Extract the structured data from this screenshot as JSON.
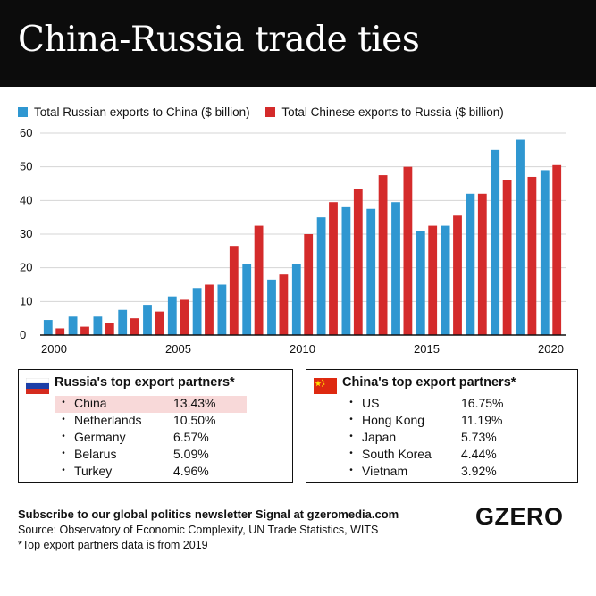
{
  "title": "China-Russia trade ties",
  "colors": {
    "russia": "#2f97d1",
    "china": "#d42b2b",
    "highlight": "#f8d9d9"
  },
  "chart_data": {
    "type": "bar",
    "x": [
      2000,
      2001,
      2002,
      2003,
      2004,
      2005,
      2006,
      2007,
      2008,
      2009,
      2010,
      2011,
      2012,
      2013,
      2014,
      2015,
      2016,
      2017,
      2018,
      2019,
      2020
    ],
    "x_tick_labels": [
      "2000",
      "2005",
      "2010",
      "2015",
      "2020"
    ],
    "y_ticks": [
      0,
      10,
      20,
      30,
      40,
      50,
      60
    ],
    "ylim": [
      0,
      60
    ],
    "grid": true,
    "legend_position": "top",
    "series": [
      {
        "name": "Total Russian exports to China ($ billion)",
        "color": "#2f97d1",
        "values": [
          4.5,
          5.5,
          5.5,
          7.5,
          9,
          11.5,
          14,
          15,
          21,
          16.5,
          21,
          35,
          38,
          37.5,
          39.5,
          31,
          32.5,
          42,
          55,
          58,
          49
        ]
      },
      {
        "name": "Total Chinese exports to Russia ($ billion)",
        "color": "#d42b2b",
        "values": [
          2,
          2.5,
          3.5,
          5,
          7,
          10.5,
          15,
          26.5,
          32.5,
          18,
          30,
          39.5,
          43.5,
          47.5,
          50,
          32.5,
          35.5,
          42,
          46,
          47,
          50.5
        ]
      }
    ]
  },
  "russia_partners": {
    "title": "Russia's top export partners*",
    "items": [
      {
        "name": "China",
        "pct": "13.43%"
      },
      {
        "name": "Netherlands",
        "pct": "10.50%"
      },
      {
        "name": "Germany",
        "pct": "6.57%"
      },
      {
        "name": "Belarus",
        "pct": "5.09%"
      },
      {
        "name": "Turkey",
        "pct": "4.96%"
      }
    ]
  },
  "china_partners": {
    "title": "China's top export partners*",
    "items": [
      {
        "name": "US",
        "pct": "16.75%"
      },
      {
        "name": "Hong Kong",
        "pct": "11.19%"
      },
      {
        "name": "Japan",
        "pct": "5.73%"
      },
      {
        "name": "South Korea",
        "pct": "4.44%"
      },
      {
        "name": "Vietnam",
        "pct": "3.92%"
      }
    ]
  },
  "footer": {
    "subscribe": "Subscribe to our global politics newsletter Signal at gzeromedia.com",
    "source": "Source: Observatory of Economic Complexity, UN Trade Statistics, WITS",
    "note": "*Top export partners data is from 2019"
  },
  "logo": "GZERO",
  "bullet": "•"
}
